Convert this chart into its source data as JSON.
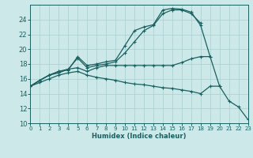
{
  "xlabel": "Humidex (Indice chaleur)",
  "xlim": [
    0,
    23
  ],
  "ylim": [
    10,
    26
  ],
  "xticks": [
    0,
    1,
    2,
    3,
    4,
    5,
    6,
    7,
    8,
    9,
    10,
    11,
    12,
    13,
    14,
    15,
    16,
    17,
    18,
    19,
    20,
    21,
    22,
    23
  ],
  "yticks": [
    10,
    12,
    14,
    16,
    18,
    20,
    22,
    24
  ],
  "background_color": "#cce8e8",
  "grid_color": "#aacece",
  "line_color": "#1a6060",
  "curves": [
    {
      "x": [
        0,
        1,
        2,
        3,
        4,
        5,
        6,
        7,
        8,
        9,
        10,
        11,
        12,
        13,
        14,
        15,
        16,
        17,
        18,
        19,
        20
      ],
      "y": [
        15.0,
        15.8,
        16.5,
        17.0,
        17.2,
        19.0,
        17.8,
        18.0,
        18.3,
        18.5,
        20.5,
        22.5,
        23.0,
        23.3,
        25.3,
        25.5,
        25.4,
        25.0,
        23.2,
        19.0,
        15.0
      ]
    },
    {
      "x": [
        0,
        1,
        2,
        3,
        4,
        5,
        6,
        7,
        8,
        9,
        10,
        11,
        12,
        13,
        14,
        15,
        16,
        17,
        18,
        19
      ],
      "y": [
        15.0,
        15.8,
        16.5,
        17.0,
        17.3,
        17.5,
        17.0,
        17.5,
        17.8,
        17.8,
        17.8,
        17.8,
        17.8,
        17.8,
        17.8,
        17.8,
        18.2,
        18.7,
        19.0,
        19.0
      ]
    },
    {
      "x": [
        0,
        1,
        2,
        3,
        4,
        5,
        6,
        7,
        8,
        9,
        10,
        11,
        12,
        13,
        14,
        15,
        16,
        17,
        18,
        19,
        20,
        21,
        22,
        23
      ],
      "y": [
        15.0,
        15.5,
        16.0,
        16.5,
        16.8,
        17.0,
        16.5,
        16.2,
        16.0,
        15.8,
        15.5,
        15.3,
        15.2,
        15.0,
        14.8,
        14.7,
        14.5,
        14.3,
        14.0,
        15.0,
        15.0,
        13.0,
        12.2,
        10.5
      ]
    },
    {
      "x": [
        0,
        1,
        2,
        3,
        4,
        5,
        6,
        7,
        8,
        9,
        10,
        11,
        12,
        13,
        14,
        15,
        16,
        17,
        18
      ],
      "y": [
        15.0,
        15.8,
        16.5,
        16.8,
        17.3,
        18.8,
        17.5,
        17.8,
        18.0,
        18.3,
        19.5,
        21.0,
        22.5,
        23.2,
        24.8,
        25.3,
        25.3,
        24.8,
        23.5
      ]
    }
  ]
}
